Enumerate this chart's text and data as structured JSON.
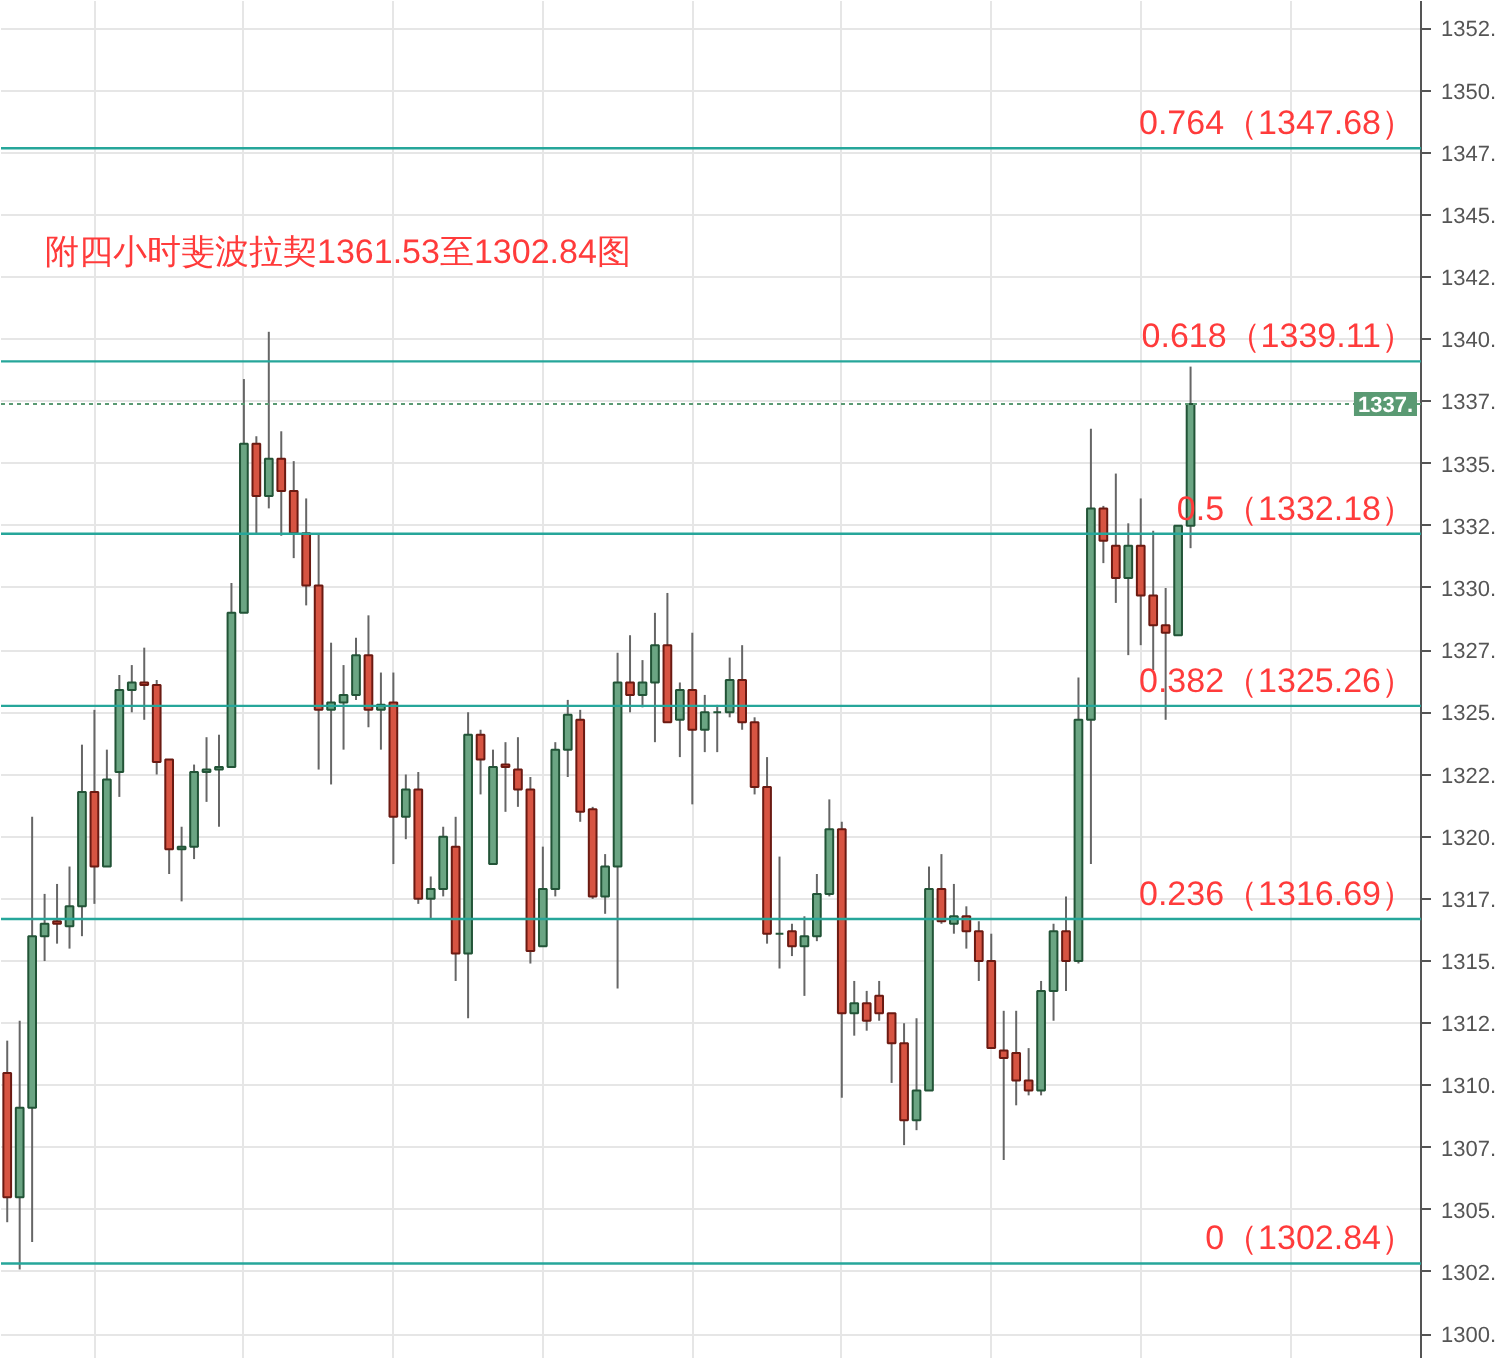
{
  "chart_data": {
    "type": "candlestick",
    "categories": [
      null,
      null,
      null,
      null,
      null,
      null,
      null,
      null,
      null,
      null,
      null,
      null,
      null,
      null,
      null,
      null,
      null,
      null,
      null,
      null,
      null,
      null,
      null,
      null,
      null,
      null,
      null,
      null,
      null,
      null,
      null,
      null,
      null,
      null,
      null,
      null,
      null,
      null,
      null,
      null,
      null,
      null,
      null,
      null,
      null,
      null,
      null,
      null,
      null,
      null,
      null,
      null,
      null,
      null,
      null,
      null,
      null,
      null,
      null,
      null,
      null,
      null,
      null,
      null,
      null,
      null,
      null,
      null,
      null,
      null,
      null,
      null,
      null,
      null,
      null,
      null,
      null,
      null,
      null,
      null,
      null,
      null,
      null,
      null,
      null,
      null,
      null,
      null,
      null,
      null,
      null,
      null,
      null,
      null,
      null,
      null,
      null,
      null,
      null,
      null,
      null,
      null,
      null,
      null,
      null,
      null,
      null,
      null,
      null,
      null,
      null,
      null,
      null,
      null
    ],
    "ohlc": [
      [
        1310.5,
        1311.8,
        1304.5,
        1305.5
      ],
      [
        1305.5,
        1312.6,
        1302.6,
        1309.1
      ],
      [
        1309.1,
        1320.8,
        1303.7,
        1316.0
      ],
      [
        1316.0,
        1317.7,
        1315.0,
        1316.5
      ],
      [
        1316.6,
        1318.1,
        1315.7,
        1316.5
      ],
      [
        1316.4,
        1318.8,
        1315.5,
        1317.2
      ],
      [
        1317.2,
        1323.7,
        1316.0,
        1321.8
      ],
      [
        1321.8,
        1325.1,
        1317.3,
        1318.8
      ],
      [
        1318.8,
        1323.5,
        1318.8,
        1322.3
      ],
      [
        1322.6,
        1326.5,
        1321.6,
        1325.9
      ],
      [
        1325.9,
        1326.9,
        1325.0,
        1326.2
      ],
      [
        1326.2,
        1327.6,
        1324.7,
        1326.1
      ],
      [
        1326.1,
        1326.3,
        1322.5,
        1323.0
      ],
      [
        1323.1,
        1323.1,
        1318.5,
        1319.5
      ],
      [
        1319.5,
        1320.4,
        1317.4,
        1319.6
      ],
      [
        1319.6,
        1322.9,
        1319.1,
        1322.6
      ],
      [
        1322.6,
        1324.0,
        1321.4,
        1322.7
      ],
      [
        1322.7,
        1324.1,
        1320.4,
        1322.8
      ],
      [
        1322.8,
        1330.2,
        1322.8,
        1329.0
      ],
      [
        1329.0,
        1338.4,
        1329.0,
        1335.8
      ],
      [
        1335.8,
        1336.1,
        1332.2,
        1333.7
      ],
      [
        1333.7,
        1340.3,
        1333.2,
        1335.2
      ],
      [
        1335.2,
        1336.3,
        1332.1,
        1333.9
      ],
      [
        1333.9,
        1335.1,
        1331.2,
        1332.2
      ],
      [
        1332.2,
        1333.6,
        1329.3,
        1330.1
      ],
      [
        1330.1,
        1332.2,
        1322.7,
        1325.1
      ],
      [
        1325.1,
        1327.8,
        1322.1,
        1325.4
      ],
      [
        1325.4,
        1326.9,
        1323.5,
        1325.7
      ],
      [
        1325.7,
        1328.0,
        1325.5,
        1327.3
      ],
      [
        1327.3,
        1328.9,
        1324.4,
        1325.1
      ],
      [
        1325.1,
        1326.6,
        1323.5,
        1325.3
      ],
      [
        1325.4,
        1326.6,
        1318.9,
        1320.8
      ],
      [
        1320.8,
        1322.5,
        1319.9,
        1321.9
      ],
      [
        1321.9,
        1322.6,
        1317.3,
        1317.5
      ],
      [
        1317.5,
        1318.4,
        1316.7,
        1317.9
      ],
      [
        1317.9,
        1320.4,
        1317.6,
        1320.0
      ],
      [
        1319.6,
        1320.8,
        1314.2,
        1315.3
      ],
      [
        1315.3,
        1325.0,
        1312.7,
        1324.1
      ],
      [
        1324.1,
        1324.3,
        1321.7,
        1323.1
      ],
      [
        1318.9,
        1323.5,
        1318.9,
        1322.8
      ],
      [
        1322.9,
        1323.8,
        1321.0,
        1322.8
      ],
      [
        1322.7,
        1324.0,
        1321.2,
        1321.9
      ],
      [
        1321.9,
        1322.4,
        1314.9,
        1315.4
      ],
      [
        1315.6,
        1319.6,
        1315.6,
        1317.9
      ],
      [
        1317.9,
        1323.8,
        1317.6,
        1323.5
      ],
      [
        1323.5,
        1325.5,
        1322.4,
        1324.9
      ],
      [
        1324.7,
        1325.1,
        1320.6,
        1321.0
      ],
      [
        1321.1,
        1321.2,
        1317.5,
        1317.6
      ],
      [
        1317.6,
        1319.3,
        1316.9,
        1318.8
      ],
      [
        1318.8,
        1327.4,
        1313.9,
        1326.2
      ],
      [
        1326.2,
        1328.1,
        1325.0,
        1325.7
      ],
      [
        1325.7,
        1327.1,
        1325.2,
        1326.2
      ],
      [
        1326.2,
        1329.0,
        1323.8,
        1327.7
      ],
      [
        1327.7,
        1329.8,
        1324.6,
        1324.6
      ],
      [
        1324.7,
        1326.2,
        1323.2,
        1325.9
      ],
      [
        1325.9,
        1328.2,
        1321.3,
        1324.3
      ],
      [
        1324.3,
        1325.7,
        1323.4,
        1325.0
      ],
      [
        1325.0,
        1325.3,
        1323.4,
        1325.0
      ],
      [
        1325.0,
        1327.2,
        1324.8,
        1326.3
      ],
      [
        1326.3,
        1327.7,
        1324.3,
        1324.6
      ],
      [
        1324.6,
        1324.8,
        1321.7,
        1322.0
      ],
      [
        1322.0,
        1323.2,
        1315.7,
        1316.1
      ],
      [
        1316.1,
        1319.2,
        1314.7,
        1316.1
      ],
      [
        1316.2,
        1316.5,
        1315.2,
        1315.6
      ],
      [
        1315.6,
        1316.8,
        1313.6,
        1316.0
      ],
      [
        1316.0,
        1318.5,
        1315.8,
        1317.7
      ],
      [
        1317.7,
        1321.5,
        1317.6,
        1320.3
      ],
      [
        1320.3,
        1320.6,
        1309.5,
        1312.9
      ],
      [
        1312.9,
        1314.2,
        1312.0,
        1313.3
      ],
      [
        1313.3,
        1313.8,
        1312.2,
        1312.6
      ],
      [
        1313.6,
        1314.2,
        1312.6,
        1312.9
      ],
      [
        1312.9,
        1312.9,
        1310.1,
        1311.7
      ],
      [
        1311.7,
        1312.5,
        1307.6,
        1308.6
      ],
      [
        1308.6,
        1312.7,
        1308.2,
        1309.8
      ],
      [
        1309.8,
        1318.8,
        1309.8,
        1317.9
      ],
      [
        1317.9,
        1319.3,
        1316.5,
        1316.6
      ],
      [
        1316.5,
        1318.1,
        1316.1,
        1316.8
      ],
      [
        1316.8,
        1317.2,
        1315.5,
        1316.2
      ],
      [
        1316.2,
        1316.6,
        1314.2,
        1315.0
      ],
      [
        1315.0,
        1316.1,
        1311.5,
        1311.5
      ],
      [
        1311.4,
        1313.0,
        1307.0,
        1311.1
      ],
      [
        1311.3,
        1313.0,
        1309.2,
        1310.2
      ],
      [
        1310.2,
        1311.5,
        1309.6,
        1309.8
      ],
      [
        1309.8,
        1314.2,
        1309.6,
        1313.8
      ],
      [
        1313.8,
        1316.5,
        1312.6,
        1316.2
      ],
      [
        1316.2,
        1317.6,
        1313.8,
        1315.0
      ],
      [
        1315.0,
        1326.4,
        1314.9,
        1324.7
      ],
      [
        1324.7,
        1336.4,
        1318.9,
        1333.2
      ],
      [
        1333.2,
        1333.3,
        1331.0,
        1331.9
      ],
      [
        1331.7,
        1334.6,
        1329.4,
        1330.4
      ],
      [
        1330.4,
        1332.6,
        1327.3,
        1331.7
      ],
      [
        1331.7,
        1333.6,
        1327.7,
        1329.7
      ],
      [
        1329.7,
        1332.3,
        1326.7,
        1328.5
      ],
      [
        1328.5,
        1330.0,
        1324.7,
        1328.2
      ],
      [
        1328.1,
        1332.5,
        1328.1,
        1332.5
      ],
      [
        1332.5,
        1338.9,
        1331.6,
        1337.4
      ],
      null,
      null,
      null,
      null,
      null,
      null,
      null,
      null,
      null,
      null,
      null,
      null,
      null,
      null,
      null,
      null,
      null,
      null
    ],
    "ylim": [
      1299,
      1353.6
    ],
    "yticks": [
      {
        "value": 1300,
        "label": "1300."
      },
      {
        "value": 1302.5,
        "label": "1302."
      },
      {
        "value": 1305,
        "label": "1305."
      },
      {
        "value": 1307.5,
        "label": "1307."
      },
      {
        "value": 1310,
        "label": "1310."
      },
      {
        "value": 1312.5,
        "label": "1312."
      },
      {
        "value": 1315,
        "label": "1315."
      },
      {
        "value": 1317.5,
        "label": "1317."
      },
      {
        "value": 1320,
        "label": "1320."
      },
      {
        "value": 1322.5,
        "label": "1322."
      },
      {
        "value": 1325,
        "label": "1325."
      },
      {
        "value": 1327.5,
        "label": "1327."
      },
      {
        "value": 1330,
        "label": "1330."
      },
      {
        "value": 1332.5,
        "label": "1332."
      },
      {
        "value": 1335,
        "label": "1335."
      },
      {
        "value": 1337.5,
        "label": "1337."
      },
      {
        "value": 1340,
        "label": "1340."
      },
      {
        "value": 1342.5,
        "label": "1342."
      },
      {
        "value": 1345,
        "label": "1345."
      },
      {
        "value": 1347.5,
        "label": "1347."
      },
      {
        "value": 1350,
        "label": "1350."
      },
      {
        "value": 1352.5,
        "label": "1352."
      }
    ],
    "grid": true,
    "tick_labels": "y",
    "ref_lines": [
      {
        "axis": "y",
        "value": 1347.68,
        "label": "0.764（1347.68）",
        "color": "#26a69a"
      },
      {
        "axis": "y",
        "value": 1339.11,
        "label": "0.618（1339.11）",
        "color": "#26a69a"
      },
      {
        "axis": "y",
        "value": 1332.18,
        "label": "0.5（1332.18）",
        "color": "#26a69a"
      },
      {
        "axis": "y",
        "value": 1325.26,
        "label": "0.382（1325.26）",
        "color": "#26a69a"
      },
      {
        "axis": "y",
        "value": 1316.69,
        "label": "0.236（1316.69）",
        "color": "#26a69a"
      },
      {
        "axis": "y",
        "value": 1302.84,
        "label": "0（1302.84）",
        "color": "#26a69a"
      },
      {
        "axis": "y",
        "value": 1337.4,
        "label": "1337.",
        "color": "#5a9a73",
        "line_style": "dotted"
      }
    ],
    "annotations": [
      "附四小时斐波拉契1361.53至1302.84图"
    ]
  }
}
